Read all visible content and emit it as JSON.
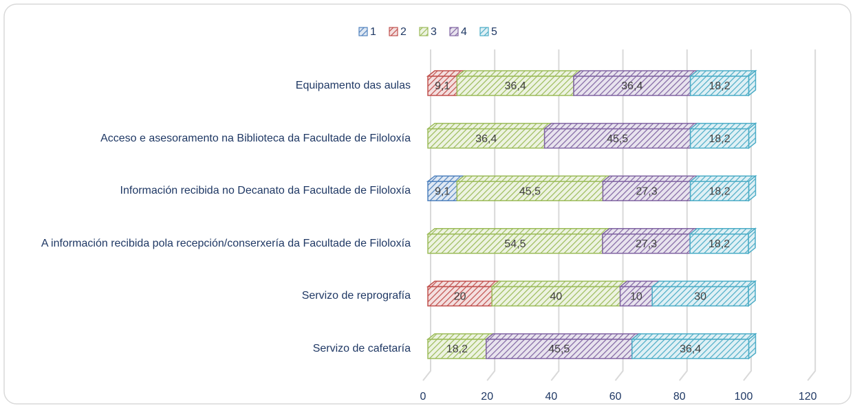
{
  "chart_data": {
    "type": "bar",
    "orientation": "horizontal",
    "stacked": true,
    "categories": [
      "Equipamento das aulas",
      "Acceso e asesoramento na Biblioteca da Facultade de Filoloxía",
      "Información recibida no Decanato da Facultade de Filoloxía",
      "A información recibida pola recepción/conserxería da Facultade de Filoloxía",
      "Servizo de reprografía",
      "Servizo de cafetaría"
    ],
    "series": [
      {
        "name": "1",
        "color": "#4f81bd",
        "values": [
          null,
          null,
          9.1,
          null,
          null,
          null
        ],
        "value_labels": [
          null,
          null,
          "9,1",
          null,
          null,
          null
        ]
      },
      {
        "name": "2",
        "color": "#c0504d",
        "values": [
          9.1,
          null,
          null,
          null,
          20,
          null
        ],
        "value_labels": [
          "9,1",
          null,
          null,
          null,
          "20",
          null
        ]
      },
      {
        "name": "3",
        "color": "#9bbb59",
        "values": [
          36.4,
          36.4,
          45.5,
          54.5,
          40,
          18.2
        ],
        "value_labels": [
          "36,4",
          "36,4",
          "45,5",
          "54,5",
          "40",
          "18,2"
        ]
      },
      {
        "name": "4",
        "color": "#8064a2",
        "values": [
          36.4,
          45.5,
          27.3,
          27.3,
          10,
          45.5
        ],
        "value_labels": [
          "36,4",
          "45,5",
          "27,3",
          "27,3",
          "10",
          "45,5"
        ]
      },
      {
        "name": "5",
        "color": "#4bacc6",
        "values": [
          18.2,
          18.2,
          18.2,
          18.2,
          30,
          36.4
        ],
        "value_labels": [
          "18,2",
          "18,2",
          "18,2",
          "18,2",
          "30",
          "36,4"
        ]
      }
    ],
    "xlim": [
      0,
      120
    ],
    "xticks": [
      0,
      20,
      40,
      60,
      80,
      100,
      120
    ],
    "grid": true,
    "legend": "top"
  }
}
